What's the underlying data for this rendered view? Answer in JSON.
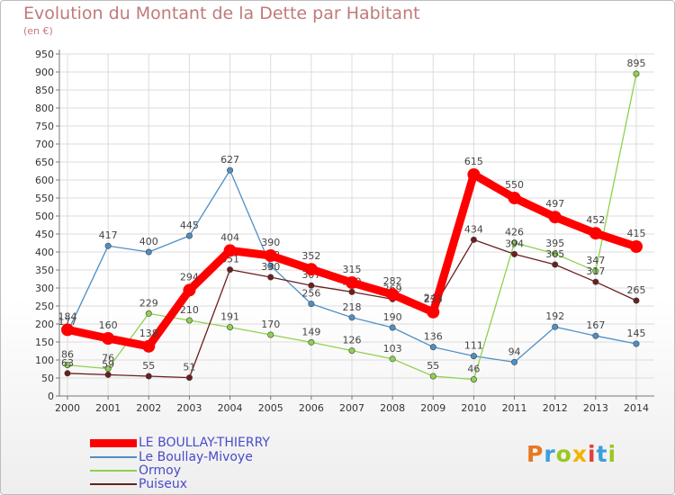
{
  "header": {
    "title": "Evolution du Montant de la Dette par Habitant",
    "subtitle": "(en €)"
  },
  "logo": {
    "text": "Proxiti",
    "colors": [
      "#e87722",
      "#3aa0dc",
      "#9bc820",
      "#f2b400",
      "#e2403b",
      "#3aa0dc",
      "#9bc820"
    ]
  },
  "chart_data": {
    "type": "line",
    "x": [
      "2000",
      "2001",
      "2002",
      "2003",
      "2004",
      "2005",
      "2006",
      "2007",
      "2008",
      "2009",
      "2010",
      "2011",
      "2012",
      "2013",
      "2014"
    ],
    "ylim": [
      0,
      950
    ],
    "yticks": [
      0,
      50,
      100,
      150,
      200,
      250,
      300,
      350,
      400,
      450,
      500,
      550,
      600,
      650,
      700,
      750,
      800,
      850,
      900,
      950
    ],
    "grid": true,
    "legend_position": "bottom-left",
    "series": [
      {
        "name": "LE BOULLAY-THIERRY",
        "color": "#ff0000",
        "values": [
          184,
          160,
          138,
          294,
          404,
          390,
          352,
          315,
          282,
          233,
          615,
          550,
          497,
          452,
          415
        ]
      },
      {
        "name": "Le Boullay-Mivoye",
        "color": "#4f8fc6",
        "values": [
          177,
          417,
          400,
          445,
          627,
          362,
          256,
          218,
          190,
          136,
          111,
          94,
          192,
          167,
          145
        ]
      },
      {
        "name": "Ormoy",
        "color": "#8fd14f",
        "values": [
          86,
          76,
          229,
          210,
          191,
          170,
          149,
          126,
          103,
          55,
          46,
          426,
          395,
          347,
          895
        ]
      },
      {
        "name": "Puiseux",
        "color": "#6b1e1e",
        "values": [
          63,
          59,
          55,
          51,
          351,
          330,
          307,
          289,
          269,
          244,
          434,
          394,
          365,
          317,
          265
        ]
      }
    ]
  }
}
